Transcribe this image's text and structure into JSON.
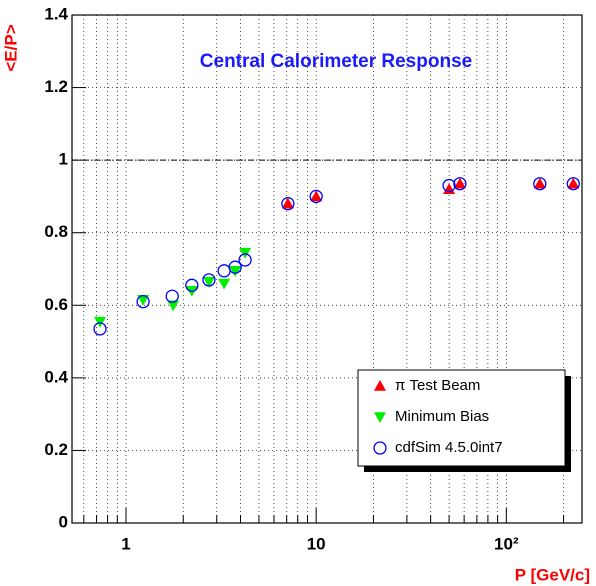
{
  "chart_data": {
    "type": "scatter",
    "title": "Central Calorimeter Response",
    "xlabel": "P [GeV/c]",
    "ylabel": "<E/P>",
    "xlog": true,
    "xlim": [
      0.52,
      250
    ],
    "ylim": [
      0,
      1.4
    ],
    "xticks": [
      1,
      10,
      {
        "value": 100,
        "label": "10²"
      }
    ],
    "xminorticks": [
      0.6,
      0.7,
      0.8,
      0.9,
      2,
      3,
      4,
      5,
      6,
      7,
      8,
      9,
      20,
      30,
      40,
      50,
      60,
      70,
      80,
      90,
      200
    ],
    "yticks": [
      0,
      0.2,
      0.4,
      0.6,
      0.8,
      1,
      1.2,
      1.4
    ],
    "grid": true,
    "hline": 1,
    "legend": "lower right",
    "series": [
      {
        "name": "π Test Beam",
        "color": "#ff0000",
        "marker": "triangle-up",
        "x": [
          7.1,
          10,
          50,
          57,
          150,
          225
        ],
        "values": [
          0.88,
          0.9,
          0.92,
          0.935,
          0.935,
          0.935
        ]
      },
      {
        "name": "Minimum Bias",
        "color": "#00ee00",
        "marker": "triangle-down",
        "x": [
          0.73,
          1.23,
          1.77,
          2.22,
          2.73,
          3.28,
          3.75,
          4.23
        ],
        "values": [
          0.555,
          0.615,
          0.6,
          0.64,
          0.665,
          0.66,
          0.695,
          0.745
        ]
      },
      {
        "name": "cdfSim 4.5.0int7",
        "color": "#0000ff",
        "marker": "circle",
        "x": [
          0.73,
          1.23,
          1.75,
          2.22,
          2.73,
          3.28,
          3.75,
          4.23,
          7.1,
          10,
          50,
          57,
          150,
          225
        ],
        "values": [
          0.535,
          0.61,
          0.625,
          0.655,
          0.67,
          0.695,
          0.705,
          0.725,
          0.88,
          0.9,
          0.93,
          0.935,
          0.935,
          0.935
        ]
      }
    ]
  }
}
